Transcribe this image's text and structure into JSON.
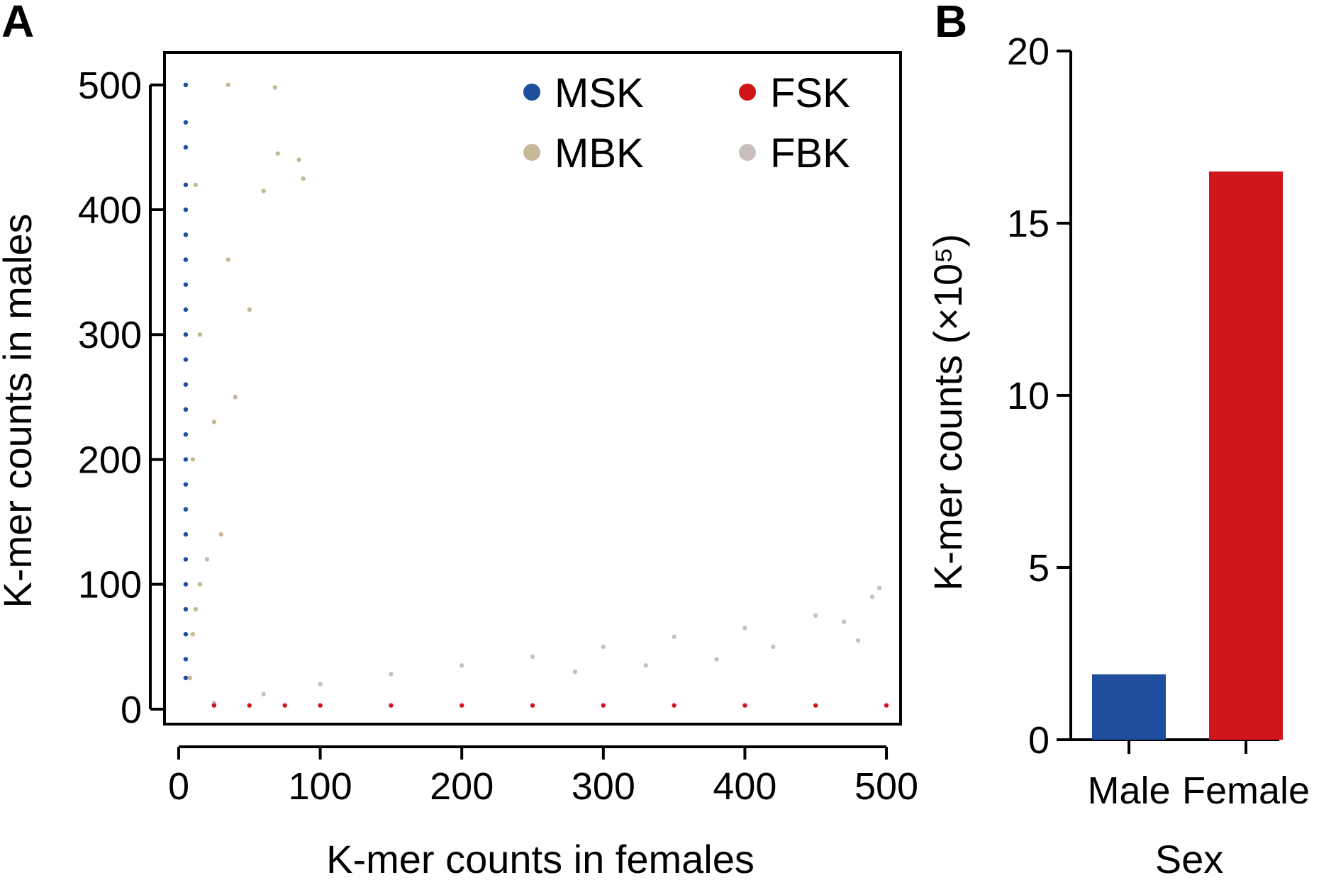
{
  "panels": {
    "a": {
      "label": "A"
    },
    "b": {
      "label": "B"
    }
  },
  "chart_data": [
    {
      "type": "scatter",
      "panel": "A",
      "xlabel": "K-mer counts in females",
      "ylabel": "K-mer counts in males",
      "xlim": [
        -10,
        510
      ],
      "ylim": [
        -12,
        526
      ],
      "xticks": [
        0,
        100,
        200,
        300,
        400,
        500
      ],
      "yticks": [
        0,
        100,
        200,
        300,
        400,
        500
      ],
      "legend_position": "top-right",
      "series": [
        {
          "name": "MSK",
          "color": "#1f4e9e",
          "description_points": [
            [
              5,
              25
            ],
            [
              5,
              40
            ],
            [
              5,
              60
            ],
            [
              5,
              80
            ],
            [
              5,
              100
            ],
            [
              5,
              120
            ],
            [
              5,
              140
            ],
            [
              5,
              160
            ],
            [
              5,
              180
            ],
            [
              5,
              200
            ],
            [
              5,
              220
            ],
            [
              5,
              240
            ],
            [
              5,
              260
            ],
            [
              5,
              280
            ],
            [
              5,
              300
            ],
            [
              5,
              320
            ],
            [
              5,
              340
            ],
            [
              5,
              360
            ],
            [
              5,
              380
            ],
            [
              5,
              400
            ],
            [
              5,
              420
            ],
            [
              5,
              450
            ],
            [
              5,
              470
            ],
            [
              5,
              500
            ]
          ]
        },
        {
          "name": "FSK",
          "color": "#d1161b",
          "description_points": [
            [
              25,
              3
            ],
            [
              50,
              3
            ],
            [
              75,
              3
            ],
            [
              100,
              3
            ],
            [
              150,
              3
            ],
            [
              200,
              3
            ],
            [
              250,
              3
            ],
            [
              300,
              3
            ],
            [
              350,
              3
            ],
            [
              400,
              3
            ],
            [
              450,
              3
            ],
            [
              500,
              3
            ]
          ]
        },
        {
          "name": "MBK",
          "color": "#c8b89a",
          "description_points": [
            [
              8,
              25
            ],
            [
              10,
              60
            ],
            [
              12,
              80
            ],
            [
              15,
              100
            ],
            [
              20,
              120
            ],
            [
              30,
              140
            ],
            [
              10,
              200
            ],
            [
              25,
              230
            ],
            [
              40,
              250
            ],
            [
              15,
              300
            ],
            [
              50,
              320
            ],
            [
              35,
              360
            ],
            [
              12,
              420
            ],
            [
              60,
              415
            ],
            [
              70,
              445
            ],
            [
              85,
              440
            ],
            [
              35,
              500
            ],
            [
              68,
              498
            ],
            [
              88,
              425
            ]
          ]
        },
        {
          "name": "FBK",
          "color": "#c9c0bd",
          "description_points": [
            [
              25,
              5
            ],
            [
              60,
              12
            ],
            [
              100,
              20
            ],
            [
              150,
              28
            ],
            [
              200,
              35
            ],
            [
              250,
              42
            ],
            [
              300,
              50
            ],
            [
              350,
              58
            ],
            [
              400,
              65
            ],
            [
              450,
              75
            ],
            [
              490,
              90
            ],
            [
              470,
              70
            ],
            [
              420,
              50
            ],
            [
              380,
              40
            ],
            [
              330,
              35
            ],
            [
              280,
              30
            ],
            [
              480,
              55
            ],
            [
              495,
              97
            ]
          ]
        }
      ]
    },
    {
      "type": "bar",
      "panel": "B",
      "xlabel": "Sex",
      "ylabel": "K-mer counts (×10⁵)",
      "categories": [
        "Male",
        "Female"
      ],
      "values": [
        1.9,
        16.5
      ],
      "colors": [
        "#1f4e9e",
        "#d1161b"
      ],
      "ylim": [
        0,
        20
      ],
      "yticks": [
        0,
        5,
        10,
        15,
        20
      ]
    }
  ]
}
